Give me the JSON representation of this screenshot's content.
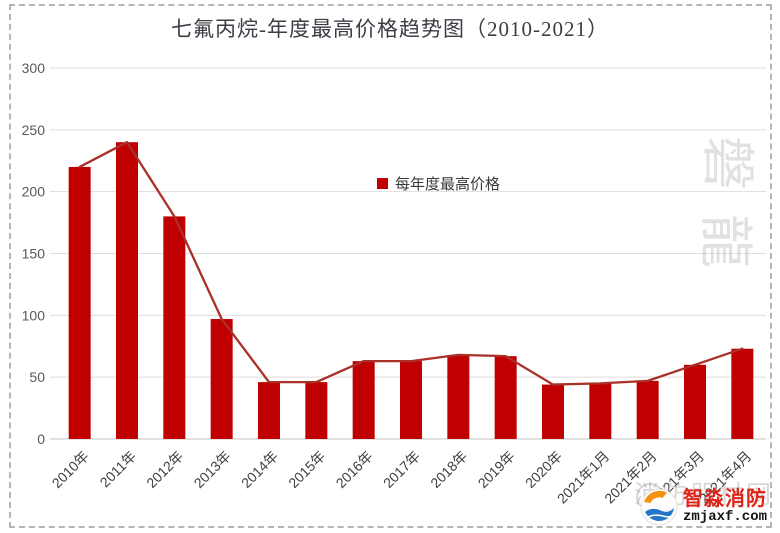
{
  "legend": {
    "label": "每年度最高价格"
  },
  "chart_data": {
    "type": "bar",
    "subtype": "bar-with-line-overlay",
    "title": "七氟丙烷-年度最高价格趋势图（2010-2021）",
    "categories": [
      "2010年",
      "2011年",
      "2012年",
      "2013年",
      "2014年",
      "2015年",
      "2016年",
      "2017年",
      "2018年",
      "2019年",
      "2020年",
      "2021年1月",
      "2021年2月",
      "2021年3月",
      "2021年4月"
    ],
    "series": [
      {
        "name": "每年度最高价格",
        "values": [
          220,
          240,
          180,
          97,
          46,
          46,
          63,
          63,
          68,
          67,
          44,
          45,
          47,
          60,
          73
        ]
      }
    ],
    "xlabel": "",
    "ylabel": "",
    "ylim": [
      0,
      300
    ],
    "yticks": [
      0,
      50,
      100,
      150,
      200,
      250,
      300
    ],
    "grid": true,
    "legend_position": "center-inside",
    "bar_color": "#c00000",
    "line_color": "#a93128",
    "gridline_color": "#dedede",
    "axisline_color": "#c6c6c6",
    "tick_label_color": "#595959",
    "xlabel_color": "#3f3f3f",
    "title_color": "#3d3d46"
  },
  "watermarks": {
    "side_chars": [
      "磐",
      "龍"
    ],
    "corner": {
      "brand": "智淼消防",
      "site": "zmjaxf.com",
      "back_text": "消防器材网"
    }
  }
}
